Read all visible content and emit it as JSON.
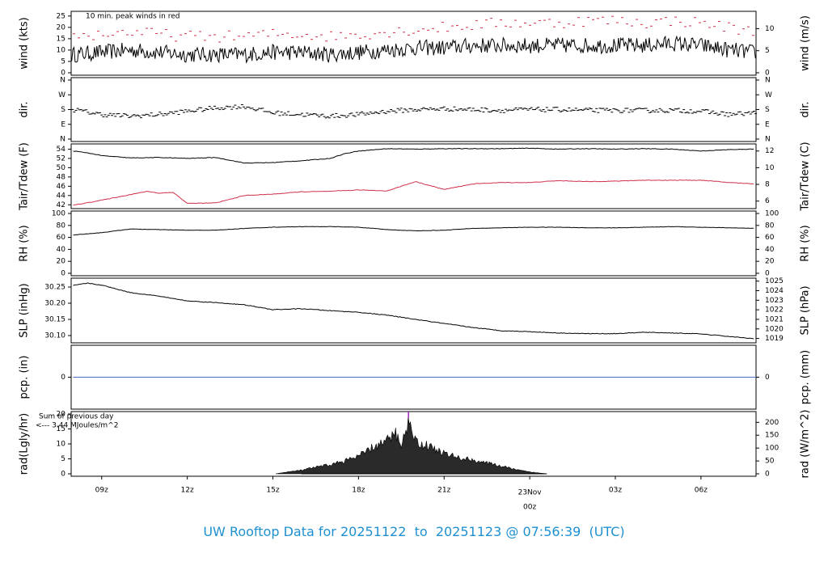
{
  "title": {
    "prefix": "UW Rooftop Data for",
    "start": "20251122",
    "to": "to",
    "end": "20251123",
    "at": "@",
    "time": "07:56:39",
    "tz": "(UTC)",
    "color": "#1e90d0"
  },
  "colors": {
    "line": "#000000",
    "dew": "#d0304a",
    "peak": "#d0304a",
    "precip": "#4a70c0",
    "rad_note": "#a020c0",
    "date_label": "#d0304a"
  },
  "x_axis": {
    "ticks": [
      "09z",
      "12z",
      "15z",
      "18z",
      "21z",
      "",
      "03z",
      "06z"
    ],
    "tick_hours": [
      9,
      12,
      15,
      18,
      21,
      24,
      27,
      30
    ],
    "range_hours": [
      7.93,
      31.93
    ],
    "date_label": [
      "23Nov",
      "00z"
    ],
    "date_label_hour": 24
  },
  "annotations": {
    "wind_note": "10 min. peak winds in red",
    "rad_note_1": "Sum of previous day",
    "rad_note_2": "<--- 3.44 MJoules/m^2"
  },
  "chart_data": [
    {
      "panel": "wind",
      "type": "line",
      "left_label": "wind (kts)",
      "right_label": "wind (m/s)",
      "left_ticks": [
        "0",
        "5",
        "10",
        "15",
        "20",
        "25"
      ],
      "left_values": [
        0,
        5,
        10,
        15,
        20,
        25
      ],
      "right_ticks": [
        "0",
        "5",
        "10"
      ],
      "right_values": [
        0,
        5,
        10
      ],
      "ylim": [
        0,
        26
      ],
      "series": [
        {
          "kind": "mean",
          "x": [
            8,
            9,
            10,
            11,
            12,
            13,
            14,
            15,
            16,
            17,
            18,
            19,
            20,
            21,
            22,
            23,
            24,
            25,
            26,
            27,
            28,
            29,
            30,
            31,
            31.9
          ],
          "y": [
            8,
            9,
            10,
            9,
            8,
            8,
            8,
            9,
            9,
            8,
            9,
            10,
            11,
            11,
            12,
            12,
            12,
            12,
            12,
            12,
            12,
            13,
            12,
            10,
            9
          ]
        },
        {
          "kind": "peak",
          "x": [
            8,
            9,
            10,
            11,
            12,
            13,
            14,
            15,
            16,
            17,
            18,
            19,
            20,
            21,
            22,
            23,
            24,
            25,
            26,
            27,
            28,
            29,
            30,
            31,
            31.9
          ],
          "y": [
            16,
            17,
            18,
            17,
            16,
            16,
            16,
            17,
            17,
            16,
            17,
            18,
            19,
            20,
            21,
            22,
            22,
            22,
            23,
            23,
            22,
            23,
            22,
            20,
            18
          ]
        }
      ]
    },
    {
      "panel": "dir",
      "type": "scatter",
      "left_label": "dir.",
      "right_label": "dir.",
      "left_ticks": [
        "N",
        "E",
        "S",
        "W",
        "N"
      ],
      "left_values": [
        0,
        90,
        180,
        270,
        360
      ],
      "right_ticks": [
        "N",
        "E",
        "S",
        "W",
        "N"
      ],
      "right_values": [
        0,
        90,
        180,
        270,
        360
      ],
      "ylim": [
        0,
        360
      ],
      "series": [
        {
          "kind": "direction",
          "x": [
            8,
            9,
            10,
            11,
            12,
            13,
            14,
            15,
            16,
            17,
            18,
            19,
            20,
            21,
            22,
            23,
            24,
            25,
            26,
            27,
            28,
            29,
            30,
            31,
            31.9
          ],
          "y": [
            180,
            150,
            140,
            150,
            170,
            190,
            200,
            160,
            150,
            140,
            150,
            170,
            180,
            185,
            180,
            175,
            180,
            180,
            175,
            175,
            175,
            175,
            170,
            150,
            160
          ]
        }
      ]
    },
    {
      "panel": "temp",
      "type": "line",
      "left_label": "Tair/Tdew (F)",
      "right_label": "Tair/Tdew (C)",
      "left_ticks": [
        "42",
        "44",
        "46",
        "48",
        "50",
        "52",
        "54"
      ],
      "left_values": [
        42,
        44,
        46,
        48,
        50,
        52,
        54
      ],
      "right_ticks": [
        "6",
        "8",
        "10",
        "12"
      ],
      "right_values": [
        6,
        8,
        10,
        12
      ],
      "ylim": [
        41.7,
        54.6
      ],
      "series": [
        {
          "kind": "tair",
          "x": [
            8,
            8.5,
            9,
            10,
            11,
            12,
            13,
            14,
            15,
            16,
            17,
            17.5,
            18,
            19,
            20,
            21,
            22,
            23,
            24,
            25,
            26,
            27,
            28,
            29,
            30,
            31,
            31.9
          ],
          "y": [
            53.6,
            53.2,
            52.6,
            52.1,
            52.2,
            52.0,
            52.2,
            51.0,
            51.1,
            51.5,
            52.0,
            53.0,
            53.6,
            54.1,
            54.0,
            54.1,
            54.1,
            54.1,
            54.2,
            54.0,
            54.1,
            54.0,
            54.1,
            54.0,
            53.6,
            53.9,
            54.0
          ]
        },
        {
          "kind": "tdew",
          "x": [
            8,
            9,
            10,
            10.6,
            11,
            11.5,
            12,
            13,
            14,
            15,
            16,
            17,
            18,
            19,
            20,
            21,
            22,
            23,
            24,
            25,
            26,
            27,
            28,
            29,
            30,
            31,
            31.9
          ],
          "y": [
            41.9,
            43.0,
            44.2,
            44.9,
            44.5,
            44.7,
            42.3,
            42.4,
            44.0,
            44.3,
            44.8,
            44.9,
            45.2,
            45.0,
            47.0,
            45.3,
            46.5,
            46.8,
            46.8,
            47.2,
            47.0,
            47.1,
            47.3,
            47.3,
            47.3,
            46.8,
            46.5
          ]
        }
      ]
    },
    {
      "panel": "rh",
      "type": "line",
      "left_label": "RH (%)",
      "right_label": "RH (%)",
      "left_ticks": [
        "0",
        "20",
        "40",
        "60",
        "80",
        "100"
      ],
      "left_values": [
        0,
        20,
        40,
        60,
        80,
        100
      ],
      "right_ticks": [
        "0",
        "20",
        "40",
        "60",
        "80",
        "100"
      ],
      "right_values": [
        0,
        20,
        40,
        60,
        80,
        100
      ],
      "ylim": [
        0,
        100
      ],
      "series": [
        {
          "kind": "rh",
          "x": [
            8,
            9,
            10,
            11,
            12,
            13,
            14,
            15,
            16,
            17,
            18,
            19,
            20,
            21,
            22,
            23,
            24,
            25,
            26,
            27,
            28,
            29,
            30,
            31,
            31.9
          ],
          "y": [
            64,
            68,
            74,
            73,
            72,
            72,
            75,
            77,
            78,
            78,
            77,
            73,
            71,
            72,
            75,
            76,
            77,
            77,
            76,
            76,
            77,
            78,
            77,
            76,
            75
          ]
        }
      ]
    },
    {
      "panel": "slp",
      "type": "line",
      "left_label": "SLP (inHg)",
      "right_label": "SLP (hPa)",
      "left_ticks": [
        "30.10",
        "30.15",
        "30.20",
        "30.25"
      ],
      "left_values": [
        30.1,
        30.15,
        30.2,
        30.25
      ],
      "right_ticks": [
        "1019",
        "1020",
        "1021",
        "1022",
        "1023",
        "1024",
        "1025"
      ],
      "right_values": [
        1019,
        1020,
        1021,
        1022,
        1023,
        1024,
        1025
      ],
      "ylim": [
        30.085,
        30.27
      ],
      "series": [
        {
          "kind": "slp",
          "x": [
            8,
            8.5,
            9,
            10,
            11,
            12,
            13,
            14,
            15,
            16,
            17,
            18,
            19,
            20,
            21,
            22,
            23,
            24,
            25,
            26,
            27,
            28,
            29,
            30,
            31,
            31.9
          ],
          "y": [
            30.255,
            30.262,
            30.256,
            30.233,
            30.222,
            30.207,
            30.202,
            30.195,
            30.18,
            30.183,
            30.177,
            30.172,
            30.163,
            30.15,
            30.137,
            30.125,
            30.115,
            30.112,
            30.108,
            30.106,
            30.106,
            30.11,
            30.108,
            30.105,
            30.097,
            30.09
          ]
        }
      ]
    },
    {
      "panel": "pcp",
      "type": "line",
      "left_label": "pcp. (in)",
      "right_label": "pcp. (mm)",
      "left_ticks": [
        "0"
      ],
      "left_values": [
        0
      ],
      "right_ticks": [
        "0"
      ],
      "right_values": [
        0
      ],
      "ylim": [
        -1,
        1
      ],
      "series": [
        {
          "kind": "pcp",
          "x": [
            8,
            31.93
          ],
          "y": [
            0,
            0
          ]
        }
      ]
    },
    {
      "panel": "rad",
      "type": "area",
      "left_label": "rad(Lgly/hr)",
      "right_label": "rad (W/m^2)",
      "left_ticks": [
        "0",
        "5",
        "10",
        "15",
        "20"
      ],
      "left_values": [
        0,
        5,
        10,
        15,
        20
      ],
      "right_ticks": [
        "0",
        "50",
        "100",
        "150",
        "200"
      ],
      "right_values": [
        0,
        50,
        100,
        150,
        200
      ],
      "ylim": [
        0,
        20
      ],
      "series": [
        {
          "kind": "rad",
          "x": [
            15.1,
            15.5,
            16,
            16.5,
            17,
            17.5,
            18,
            18.5,
            19,
            19.3,
            19.5,
            19.7,
            19.8,
            20,
            20.5,
            21,
            21.5,
            22,
            22.5,
            23,
            23.5,
            24,
            24.6
          ],
          "y": [
            0,
            0.6,
            1.2,
            2.2,
            3.0,
            4.3,
            5.8,
            8.8,
            11.0,
            13.5,
            10.0,
            15.0,
            19.5,
            10.5,
            9.2,
            6.8,
            5.4,
            4.6,
            3.6,
            2.6,
            1.4,
            0.6,
            0
          ]
        }
      ]
    }
  ]
}
